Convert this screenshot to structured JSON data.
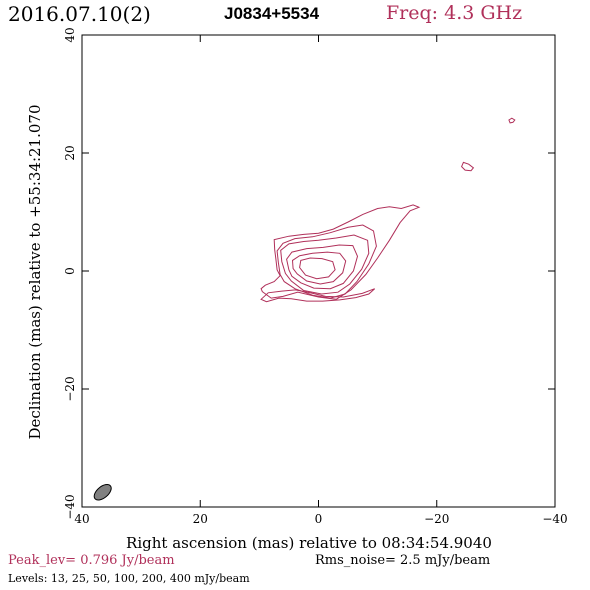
{
  "header": {
    "date_label": "2016.07.10(2)",
    "source_label": "J0834+5534",
    "freq_label": "Freq: 4.3 GHz"
  },
  "footer": {
    "peak_label": "Peak_lev=  0.796 Jy/beam",
    "rms_label": "Rms_noise=  2.5 mJy/beam",
    "levels_label": "Levels:  13,  25,  50, 100, 200, 400 mJy/beam"
  },
  "colors": {
    "contour": "#b0305a",
    "beam_fill": "#808080",
    "text_accent": "#b0305a"
  },
  "chart_data": {
    "type": "contour",
    "xlabel": "Right ascension (mas) relative to 08:34:54.9040",
    "ylabel": "Declination (mas) relative to +55:34:21.070",
    "xlim": [
      40,
      -40
    ],
    "ylim": [
      -40,
      40
    ],
    "x_ticks": [
      "40",
      "20",
      "0",
      "−20",
      "−40"
    ],
    "y_ticks": [
      "−40",
      "−20",
      "0",
      "20",
      "40"
    ],
    "x_tick_values": [
      40,
      20,
      0,
      -20,
      -40
    ],
    "y_tick_values": [
      -40,
      -20,
      0,
      20,
      40
    ],
    "contour_levels_mjy": [
      13,
      25,
      50,
      100,
      200,
      400
    ],
    "peak_jy_per_beam": 0.796,
    "rms_mjy_per_beam": 2.5,
    "contours": [
      {
        "level": 13,
        "points": [
          [
            9.5,
            -3.5
          ],
          [
            8,
            -4.6
          ],
          [
            6,
            -4.3
          ],
          [
            3.5,
            -3.6
          ],
          [
            0,
            -4.4
          ],
          [
            -3,
            -4.8
          ],
          [
            -5.5,
            -3.2
          ],
          [
            -8,
            -0.6
          ],
          [
            -10,
            2.2
          ],
          [
            -12,
            5.2
          ],
          [
            -13.8,
            8.2
          ],
          [
            -15.5,
            10.2
          ],
          [
            -17,
            10.8
          ],
          [
            -16,
            11.2
          ],
          [
            -14,
            10.6
          ],
          [
            -12,
            10.9
          ],
          [
            -10,
            10.6
          ],
          [
            -7.5,
            9.6
          ],
          [
            -5,
            8.3
          ],
          [
            -2.5,
            7.1
          ],
          [
            0,
            6.4
          ],
          [
            2.5,
            6.2
          ],
          [
            5,
            5.9
          ],
          [
            7.5,
            5.3
          ],
          [
            7.4,
            3.6
          ],
          [
            7.2,
            2.0
          ],
          [
            7.0,
            0.2
          ],
          [
            6.5,
            -0.8
          ],
          [
            7.5,
            -1.8
          ],
          [
            9.0,
            -2.4
          ],
          [
            9.7,
            -3.0
          ]
        ]
      },
      {
        "level": 25,
        "points": [
          [
            6.5,
            -0.6
          ],
          [
            6.8,
            1.5
          ],
          [
            7,
            3.4
          ],
          [
            6,
            4.7
          ],
          [
            4,
            5.5
          ],
          [
            1,
            5.8
          ],
          [
            -2,
            6.5
          ],
          [
            -5,
            7.4
          ],
          [
            -7.5,
            7.8
          ],
          [
            -9.3,
            6.8
          ],
          [
            -9.8,
            4.2
          ],
          [
            -8.5,
            1.2
          ],
          [
            -6.5,
            -1.8
          ],
          [
            -4.5,
            -3.9
          ],
          [
            -2,
            -4.6
          ],
          [
            1,
            -4.1
          ],
          [
            4,
            -3.0
          ],
          [
            5.8,
            -1.8
          ]
        ]
      },
      {
        "level": 50,
        "points": [
          [
            5.6,
            -0.4
          ],
          [
            6.2,
            1.6
          ],
          [
            6.4,
            3.5
          ],
          [
            5,
            4.6
          ],
          [
            2.5,
            5.0
          ],
          [
            0,
            5.2
          ],
          [
            -3,
            5.6
          ],
          [
            -6,
            6.1
          ],
          [
            -8.3,
            5.2
          ],
          [
            -8.5,
            3.0
          ],
          [
            -7.3,
            0.3
          ],
          [
            -5.3,
            -2.2
          ],
          [
            -3.3,
            -3.6
          ],
          [
            -0.5,
            -3.9
          ],
          [
            2.5,
            -3.3
          ],
          [
            4.6,
            -1.7
          ]
        ]
      },
      {
        "level": 100,
        "points": [
          [
            5.0,
            0.2
          ],
          [
            5.4,
            2.0
          ],
          [
            4.5,
            3.2
          ],
          [
            2,
            3.8
          ],
          [
            -0.8,
            4.0
          ],
          [
            -3.5,
            4.4
          ],
          [
            -5.8,
            4.3
          ],
          [
            -6.6,
            2.5
          ],
          [
            -5.9,
            0.0
          ],
          [
            -4.2,
            -2.1
          ],
          [
            -2,
            -3.0
          ],
          [
            0.8,
            -2.9
          ],
          [
            3,
            -2.0
          ],
          [
            4.5,
            -0.9
          ]
        ]
      },
      {
        "level": 200,
        "points": [
          [
            4.3,
            0.4
          ],
          [
            4.4,
            1.8
          ],
          [
            3.2,
            2.6
          ],
          [
            1,
            3.0
          ],
          [
            -1.5,
            3.2
          ],
          [
            -3.6,
            3.0
          ],
          [
            -4.6,
            1.7
          ],
          [
            -4.1,
            -0.3
          ],
          [
            -2.5,
            -1.8
          ],
          [
            -0.3,
            -2.2
          ],
          [
            2,
            -1.7
          ],
          [
            3.6,
            -0.5
          ]
        ]
      },
      {
        "level": 400,
        "points": [
          [
            3.2,
            0.6
          ],
          [
            3.0,
            1.8
          ],
          [
            1.4,
            2.2
          ],
          [
            -0.6,
            2.1
          ],
          [
            -2.4,
            1.6
          ],
          [
            -2.8,
            0.2
          ],
          [
            -1.7,
            -1.0
          ],
          [
            0.3,
            -1.3
          ],
          [
            2.2,
            -0.7
          ]
        ]
      },
      {
        "level": 13,
        "points": [
          [
            -9.5,
            -3.0
          ],
          [
            -7.4,
            -3.8
          ],
          [
            -4.2,
            -4.4
          ],
          [
            -1.2,
            -4.3
          ],
          [
            1.4,
            -3.7
          ],
          [
            3.9,
            -3.2
          ],
          [
            6.2,
            -3.4
          ],
          [
            8.5,
            -3.7
          ],
          [
            9.7,
            -4.8
          ],
          [
            8.8,
            -5.2
          ],
          [
            6.7,
            -4.6
          ],
          [
            4.6,
            -4.7
          ],
          [
            2,
            -5.1
          ],
          [
            -0.7,
            -5.1
          ],
          [
            -3.6,
            -4.9
          ],
          [
            -6.3,
            -4.5
          ],
          [
            -8.5,
            -3.9
          ]
        ]
      },
      {
        "level": 13,
        "points": [
          [
            -24.5,
            18.4
          ],
          [
            -25.4,
            18.1
          ],
          [
            -26.2,
            17.5
          ],
          [
            -25.8,
            17.0
          ],
          [
            -24.8,
            17.1
          ],
          [
            -24.2,
            17.7
          ]
        ]
      },
      {
        "level": 13,
        "points": [
          [
            -32.2,
            25.6
          ],
          [
            -32.7,
            25.9
          ],
          [
            -33.2,
            25.6
          ],
          [
            -32.9,
            25.2
          ],
          [
            -32.4,
            25.1
          ]
        ]
      }
    ],
    "beam": {
      "ra_mas": 36.5,
      "dec_mas": -37.5,
      "major_mas": 3.4,
      "minor_mas": 1.9,
      "pa_deg": -40
    }
  }
}
